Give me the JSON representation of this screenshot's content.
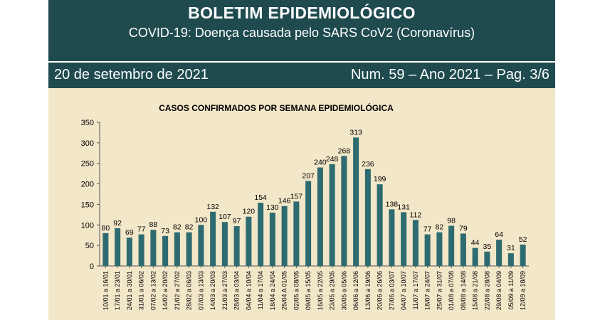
{
  "header": {
    "title": "BOLETIM EPIDEMIOLÓGICO",
    "subtitle": "COVID-19: Doença  causada pelo SARS CoV2 (Coronavírus)"
  },
  "bulletin": {
    "date": "20 de setembro de 2021",
    "issue": "Num. 59 – Ano 2021 – Pag. 3/6"
  },
  "colors": {
    "header_bg": "#1f4b4f",
    "chart_bg": "#f3e7c9",
    "bar": "#2e6b70"
  },
  "chart_data": {
    "type": "bar",
    "title": "CASOS CONFIRMADOS POR SEMANA EPIDEMIOLÓGICA",
    "xlabel": "",
    "ylabel": "",
    "ylim": [
      0,
      350
    ],
    "yticks": [
      0,
      50,
      100,
      150,
      200,
      250,
      300,
      350
    ],
    "grid": false,
    "legend": "none",
    "categories": [
      "10/01 a 16/01",
      "17/01 a 23/01",
      "24/01 a 30/01",
      "31/01 a 06/02",
      "07/02 a 13/02",
      "14/02 a 20/02",
      "21/02 a 27/02",
      "28/02 a 06/03",
      "07/03 a 13/03",
      "14/03 a 20/03",
      "21/03 a 27/03",
      "28/03 a 03/04",
      "04/04 a 10/04",
      "11/04 a 17/04",
      "18/04 a 24/04",
      "25/04 A 01/05",
      "02/05 a 08/05",
      "09/05 a 15/05",
      "16/05 a 22/05",
      "23/05 a 29/05",
      "30/05 a 05/06",
      "06/06 a 12/06",
      "13/06 a 19/06",
      "20/06 a 26/06",
      "27/06 a 03/07",
      "04/07 a 10/07",
      "11/07 a 17/07",
      "18/07 a 24/07",
      "25/07 a 31/07",
      "01/08 a 07/08",
      "08/08 a 14/08",
      "15/08 a 21/08",
      "22/08 a 28/08",
      "29/08 a 04/09",
      "05/09 a 11/09",
      "12/09 a 18/09"
    ],
    "values": [
      80,
      92,
      69,
      77,
      88,
      73,
      82,
      82,
      100,
      132,
      107,
      97,
      120,
      154,
      130,
      146,
      157,
      207,
      240,
      248,
      268,
      313,
      236,
      199,
      138,
      131,
      112,
      77,
      82,
      98,
      79,
      44,
      35,
      64,
      31,
      52
    ]
  }
}
